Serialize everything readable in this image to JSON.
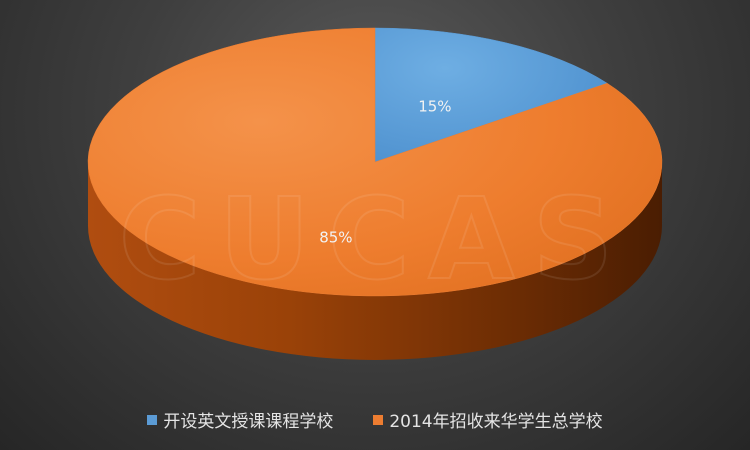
{
  "chart_data": {
    "type": "pie",
    "title": "",
    "style": "3d",
    "legend_position": "bottom",
    "series": [
      {
        "name": "开设英文授课课程学校",
        "value": 15,
        "label": "15%",
        "color": "#5b9bd5"
      },
      {
        "name": "2014年招收来华学生总学校",
        "value": 85,
        "label": "85%",
        "color": "#ed7d31"
      }
    ]
  },
  "watermark": "CUCAS",
  "colors": {
    "background": "#3a3a3a",
    "legend_text": "#e4e4e4",
    "data_label_text": "#f2f2f2"
  }
}
